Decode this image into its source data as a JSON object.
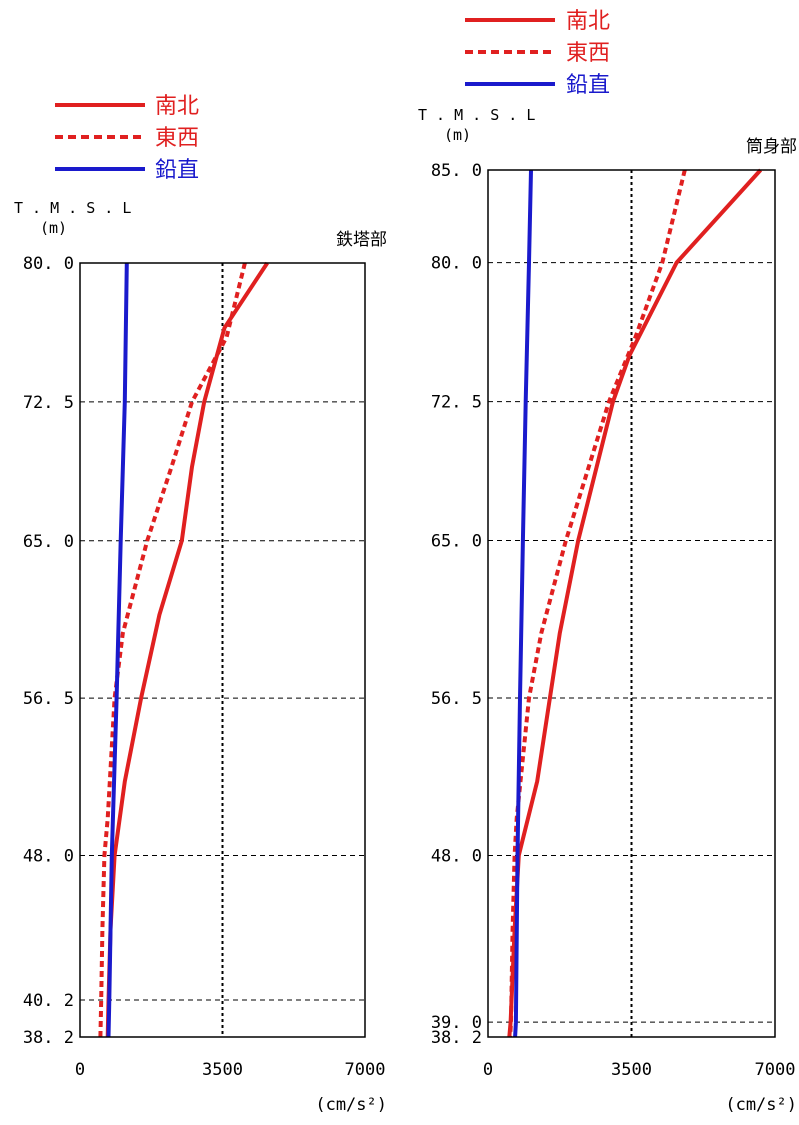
{
  "chart_data": [
    {
      "type": "line",
      "title": "鉄塔部",
      "ylabel": "T.M.S.L\n(m)",
      "xlabel": "(cm/s²)",
      "xlim": [
        0,
        7000
      ],
      "ylim": [
        38.2,
        80.0
      ],
      "xticks": [
        "0",
        "3500",
        "7000"
      ],
      "yticks": [
        "38.2",
        "40.2",
        "48.0",
        "56.5",
        "65.0",
        "72.5",
        "80.0"
      ],
      "reference_x": 3500,
      "series": [
        {
          "name": "南北",
          "color": "#e02020",
          "style": "solid",
          "points": [
            [
              4600,
              80.0
            ],
            [
              3550,
              76.5
            ],
            [
              3050,
              72.5
            ],
            [
              2750,
              69.0
            ],
            [
              2500,
              65.0
            ],
            [
              1950,
              61.0
            ],
            [
              1500,
              56.5
            ],
            [
              1100,
              52.0
            ],
            [
              850,
              48.0
            ],
            [
              750,
              44.0
            ],
            [
              700,
              40.2
            ],
            [
              680,
              38.2
            ]
          ]
        },
        {
          "name": "東西",
          "color": "#e02020",
          "style": "dashed",
          "points": [
            [
              4050,
              80.0
            ],
            [
              3600,
              76.0
            ],
            [
              2750,
              72.5
            ],
            [
              2250,
              69.0
            ],
            [
              1650,
              65.0
            ],
            [
              1050,
              60.0
            ],
            [
              850,
              56.5
            ],
            [
              680,
              50.0
            ],
            [
              600,
              48.0
            ],
            [
              550,
              44.0
            ],
            [
              520,
              40.2
            ],
            [
              500,
              38.2
            ]
          ]
        },
        {
          "name": "鉛直",
          "color": "#1a1acc",
          "style": "solid",
          "points": [
            [
              1150,
              80.0
            ],
            [
              1100,
              72.5
            ],
            [
              1000,
              65.0
            ],
            [
              900,
              56.5
            ],
            [
              780,
              48.0
            ],
            [
              720,
              40.2
            ],
            [
              700,
              38.2
            ]
          ]
        }
      ]
    },
    {
      "type": "line",
      "title": "筒身部",
      "ylabel": "T.M.S.L\n(m)",
      "xlabel": "(cm/s²)",
      "xlim": [
        0,
        7000
      ],
      "ylim": [
        38.2,
        85.0
      ],
      "xticks": [
        "0",
        "3500",
        "7000"
      ],
      "yticks": [
        "38.2",
        "39.0",
        "48.0",
        "56.5",
        "65.0",
        "72.5",
        "80.0",
        "85.0"
      ],
      "reference_x": 3500,
      "series": [
        {
          "name": "南北",
          "color": "#e02020",
          "style": "solid",
          "points": [
            [
              6650,
              85.0
            ],
            [
              4600,
              80.0
            ],
            [
              3450,
              75.0
            ],
            [
              3050,
              72.5
            ],
            [
              2200,
              65.0
            ],
            [
              1750,
              60.0
            ],
            [
              1200,
              52.0
            ],
            [
              750,
              48.0
            ],
            [
              650,
              44.0
            ],
            [
              550,
              39.0
            ],
            [
              520,
              38.2
            ]
          ]
        },
        {
          "name": "東西",
          "color": "#e02020",
          "style": "dashed",
          "points": [
            [
              4800,
              85.0
            ],
            [
              4250,
              80.0
            ],
            [
              3600,
              76.0
            ],
            [
              2950,
              72.5
            ],
            [
              1900,
              65.0
            ],
            [
              1300,
              60.0
            ],
            [
              1000,
              56.5
            ],
            [
              700,
              50.0
            ],
            [
              650,
              48.0
            ],
            [
              600,
              44.0
            ],
            [
              560,
              39.0
            ],
            [
              540,
              38.2
            ]
          ]
        },
        {
          "name": "鉛直",
          "color": "#1a1acc",
          "style": "solid",
          "points": [
            [
              1050,
              85.0
            ],
            [
              1000,
              80.0
            ],
            [
              920,
              72.5
            ],
            [
              850,
              65.0
            ],
            [
              780,
              56.5
            ],
            [
              720,
              48.0
            ],
            [
              680,
              39.0
            ],
            [
              660,
              38.2
            ]
          ]
        }
      ]
    }
  ],
  "legend_labels": [
    "南北",
    "東西",
    "鉛直"
  ]
}
